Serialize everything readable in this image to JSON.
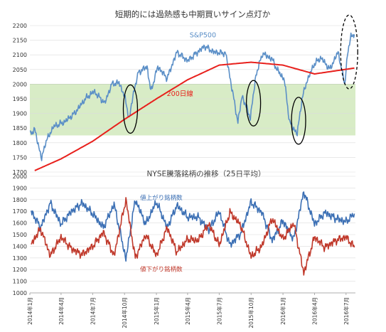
{
  "chart_data": [
    {
      "type": "line",
      "title": "短期的には過熱感も中期買いサイン点灯か",
      "ylim": [
        1700,
        2200
      ],
      "yticks": [
        1700,
        1750,
        1800,
        1850,
        1900,
        1950,
        2000,
        2050,
        2100,
        2150,
        2200
      ],
      "highlight_band": [
        1825,
        2000
      ],
      "colors": {
        "sp500": "#5b8fc7",
        "ma200": "#e8201c",
        "band": "#d8ecc6",
        "ellipse": "#000000"
      },
      "series": [
        {
          "name": "S&P500",
          "x": [
            "2014-01-02",
            "2014-01-15",
            "2014-02-04",
            "2014-02-15",
            "2014-03-10",
            "2014-04-10",
            "2014-05-10",
            "2014-06-10",
            "2014-07-05",
            "2014-08-05",
            "2014-08-25",
            "2014-09-15",
            "2014-10-01",
            "2014-10-15",
            "2014-10-25",
            "2014-11-10",
            "2014-12-05",
            "2014-12-16",
            "2015-01-05",
            "2015-02-01",
            "2015-03-01",
            "2015-04-01",
            "2015-05-20",
            "2015-06-15",
            "2015-07-20",
            "2015-08-24",
            "2015-09-05",
            "2015-09-29",
            "2015-10-15",
            "2015-11-03",
            "2015-12-01",
            "2015-12-15",
            "2016-01-05",
            "2016-01-20",
            "2016-02-11",
            "2016-02-25",
            "2016-03-10",
            "2016-04-01",
            "2016-04-20",
            "2016-05-15",
            "2016-06-08",
            "2016-06-27",
            "2016-07-05",
            "2016-07-15",
            "2016-07-25"
          ],
          "values": [
            1830,
            1845,
            1745,
            1800,
            1855,
            1870,
            1900,
            1950,
            1975,
            1935,
            2000,
            2005,
            1960,
            1880,
            1960,
            2040,
            2060,
            1975,
            2060,
            2020,
            2110,
            2080,
            2130,
            2110,
            2105,
            1870,
            1960,
            1885,
            2030,
            2105,
            2085,
            2050,
            2015,
            1870,
            1830,
            1950,
            2010,
            2070,
            2090,
            2050,
            2110,
            2000,
            2100,
            2165,
            2170
          ]
        },
        {
          "name": "200日線",
          "x": [
            "2014-01-15",
            "2014-04-01",
            "2014-07-01",
            "2014-10-01",
            "2015-01-01",
            "2015-04-01",
            "2015-07-01",
            "2015-10-01",
            "2016-01-01",
            "2016-04-01",
            "2016-07-25"
          ],
          "values": [
            1705,
            1745,
            1805,
            1880,
            1950,
            2015,
            2065,
            2075,
            2065,
            2035,
            2055
          ]
        }
      ],
      "annotations": [
        {
          "label": "S&P500",
          "x": "2015-05-15",
          "y": 2160
        },
        {
          "label": "200日線",
          "x": "2015-03-10",
          "y": 1960
        }
      ],
      "highlights": [
        {
          "x": "2014-10-18",
          "y": 1915
        },
        {
          "x": "2015-10-08",
          "y": 1935
        },
        {
          "x": "2016-02-15",
          "y": 1875
        },
        {
          "x": "2016-07-10",
          "y": 2110
        }
      ]
    },
    {
      "type": "line",
      "title": "NYSE騰落銘柄の推移（25日平均）",
      "ylim": [
        1000,
        2000
      ],
      "yticks": [
        1000,
        1100,
        1200,
        1300,
        1400,
        1500,
        1600,
        1700,
        1800,
        1900,
        2000
      ],
      "xticks": [
        "2014年1月",
        "2014年4月",
        "2014年7月",
        "2014年10月",
        "2015年1月",
        "2015年4月",
        "2015年7月",
        "2015年10月",
        "2016年1月",
        "2016年4月",
        "2016年7月"
      ],
      "colors": {
        "advancers": "#3b6fb4",
        "decliners": "#c0392b"
      },
      "series": [
        {
          "name": "値上がり銘柄数",
          "x": [
            "2014-01-05",
            "2014-02-01",
            "2014-03-01",
            "2014-04-01",
            "2014-05-01",
            "2014-06-01",
            "2014-07-01",
            "2014-08-01",
            "2014-09-01",
            "2014-10-05",
            "2014-11-01",
            "2014-12-01",
            "2015-01-01",
            "2015-02-01",
            "2015-03-01",
            "2015-04-01",
            "2015-05-01",
            "2015-06-01",
            "2015-07-01",
            "2015-08-01",
            "2015-09-01",
            "2015-10-01",
            "2015-11-01",
            "2015-12-01",
            "2016-01-01",
            "2016-02-01",
            "2016-03-01",
            "2016-04-01",
            "2016-05-01",
            "2016-06-01",
            "2016-07-01",
            "2016-07-25"
          ],
          "values": [
            1700,
            1560,
            1770,
            1590,
            1700,
            1770,
            1680,
            1560,
            1760,
            1290,
            1800,
            1590,
            1780,
            1560,
            1750,
            1650,
            1650,
            1540,
            1700,
            1410,
            1510,
            1780,
            1690,
            1450,
            1620,
            1460,
            1870,
            1590,
            1690,
            1640,
            1610,
            1680
          ]
        },
        {
          "name": "値下がり銘柄数",
          "x": [
            "2014-01-05",
            "2014-02-01",
            "2014-03-01",
            "2014-04-01",
            "2014-05-01",
            "2014-06-01",
            "2014-07-01",
            "2014-08-01",
            "2014-09-01",
            "2014-10-05",
            "2014-11-01",
            "2014-12-01",
            "2015-01-01",
            "2015-02-01",
            "2015-03-01",
            "2015-04-01",
            "2015-05-01",
            "2015-06-01",
            "2015-07-01",
            "2015-08-01",
            "2015-09-01",
            "2015-10-01",
            "2015-11-01",
            "2015-12-01",
            "2016-01-01",
            "2016-02-01",
            "2016-03-01",
            "2016-04-01",
            "2016-05-01",
            "2016-06-01",
            "2016-07-01",
            "2016-07-25"
          ],
          "values": [
            1420,
            1550,
            1320,
            1480,
            1380,
            1330,
            1400,
            1520,
            1320,
            1800,
            1300,
            1500,
            1320,
            1560,
            1350,
            1460,
            1450,
            1590,
            1410,
            1690,
            1580,
            1310,
            1400,
            1640,
            1460,
            1600,
            1170,
            1480,
            1390,
            1450,
            1480,
            1390
          ]
        }
      ],
      "annotations": [
        {
          "label": "値上がり銘柄数",
          "x": "2015-01-15",
          "y": 1800
        },
        {
          "label": "値下がり銘柄数",
          "x": "2015-01-15",
          "y": 1185
        }
      ]
    }
  ]
}
